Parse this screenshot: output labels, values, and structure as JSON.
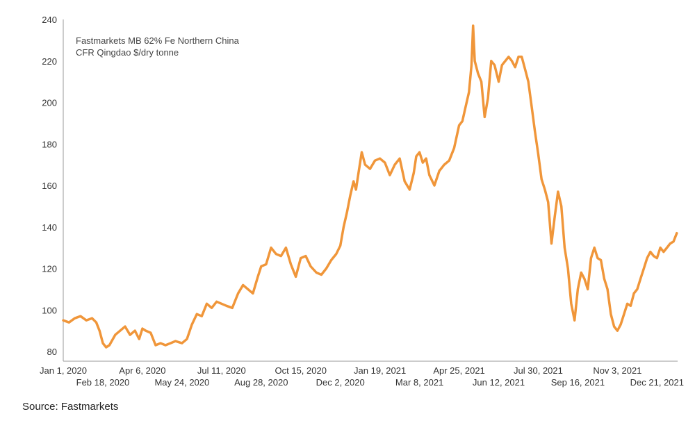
{
  "chart_data": {
    "type": "line",
    "title": "",
    "annotation": [
      "Fastmarkets MB 62% Fe Northern China",
      "CFR Qingdao $/dry tonne"
    ],
    "xlabel": "",
    "ylabel": "",
    "ylim": [
      75,
      240
    ],
    "yticks": [
      80,
      100,
      120,
      140,
      160,
      180,
      200,
      220,
      240
    ],
    "xlim": [
      "2020-01-01",
      "2022-01-15"
    ],
    "xticks_top": [
      "Jan 1, 2020",
      "Apr 6, 2020",
      "Jul 11, 2020",
      "Oct 15, 2020",
      "Jan 19, 2021",
      "Apr 25, 2021",
      "Jul 30, 2021",
      "Nov 3, 2021"
    ],
    "xticks_bottom": [
      "Feb 18, 2020",
      "May 24, 2020",
      "Aug 28, 2020",
      "Dec 2, 2020",
      "Mar 8, 2021",
      "Jun 12, 2021",
      "Sep 16, 2021",
      "Dec 21, 2021"
    ],
    "grid": false,
    "line_color": "#f0963a",
    "series": [
      {
        "name": "",
        "x": [
          "2020-01-01",
          "2020-01-08",
          "2020-01-15",
          "2020-01-22",
          "2020-01-29",
          "2020-02-05",
          "2020-02-10",
          "2020-02-14",
          "2020-02-18",
          "2020-02-22",
          "2020-02-26",
          "2020-03-04",
          "2020-03-10",
          "2020-03-16",
          "2020-03-22",
          "2020-03-28",
          "2020-04-02",
          "2020-04-06",
          "2020-04-10",
          "2020-04-16",
          "2020-04-22",
          "2020-04-28",
          "2020-05-04",
          "2020-05-10",
          "2020-05-16",
          "2020-05-24",
          "2020-05-30",
          "2020-06-05",
          "2020-06-11",
          "2020-06-17",
          "2020-06-23",
          "2020-06-29",
          "2020-07-05",
          "2020-07-11",
          "2020-07-17",
          "2020-07-24",
          "2020-07-31",
          "2020-08-06",
          "2020-08-12",
          "2020-08-18",
          "2020-08-24",
          "2020-08-28",
          "2020-09-03",
          "2020-09-09",
          "2020-09-15",
          "2020-09-21",
          "2020-09-27",
          "2020-10-03",
          "2020-10-09",
          "2020-10-15",
          "2020-10-21",
          "2020-10-27",
          "2020-11-03",
          "2020-11-09",
          "2020-11-15",
          "2020-11-21",
          "2020-11-27",
          "2020-12-02",
          "2020-12-06",
          "2020-12-10",
          "2020-12-14",
          "2020-12-18",
          "2020-12-21",
          "2020-12-24",
          "2020-12-28",
          "2021-01-01",
          "2021-01-07",
          "2021-01-13",
          "2021-01-19",
          "2021-01-25",
          "2021-01-31",
          "2021-02-06",
          "2021-02-12",
          "2021-02-18",
          "2021-02-24",
          "2021-03-01",
          "2021-03-04",
          "2021-03-08",
          "2021-03-12",
          "2021-03-16",
          "2021-03-20",
          "2021-03-26",
          "2021-04-01",
          "2021-04-07",
          "2021-04-13",
          "2021-04-19",
          "2021-04-25",
          "2021-04-29",
          "2021-05-03",
          "2021-05-07",
          "2021-05-10",
          "2021-05-12",
          "2021-05-14",
          "2021-05-18",
          "2021-05-22",
          "2021-05-26",
          "2021-05-30",
          "2021-06-03",
          "2021-06-07",
          "2021-06-12",
          "2021-06-16",
          "2021-06-20",
          "2021-06-24",
          "2021-06-28",
          "2021-07-02",
          "2021-07-06",
          "2021-07-10",
          "2021-07-14",
          "2021-07-18",
          "2021-07-22",
          "2021-07-26",
          "2021-07-30",
          "2021-08-03",
          "2021-08-07",
          "2021-08-11",
          "2021-08-15",
          "2021-08-19",
          "2021-08-23",
          "2021-08-27",
          "2021-08-31",
          "2021-09-04",
          "2021-09-08",
          "2021-09-12",
          "2021-09-16",
          "2021-09-20",
          "2021-09-24",
          "2021-09-28",
          "2021-10-02",
          "2021-10-06",
          "2021-10-10",
          "2021-10-14",
          "2021-10-18",
          "2021-10-22",
          "2021-10-26",
          "2021-10-30",
          "2021-11-03",
          "2021-11-07",
          "2021-11-11",
          "2021-11-15",
          "2021-11-19",
          "2021-11-23",
          "2021-11-27",
          "2021-12-01",
          "2021-12-05",
          "2021-12-09",
          "2021-12-13",
          "2021-12-17",
          "2021-12-21",
          "2021-12-25",
          "2021-12-29",
          "2022-01-02",
          "2022-01-06",
          "2022-01-10",
          "2022-01-14"
        ],
        "values": [
          95,
          94,
          96,
          97,
          95,
          96,
          94,
          90,
          84,
          82,
          83,
          88,
          90,
          92,
          88,
          90,
          86,
          91,
          90,
          89,
          83,
          84,
          83,
          84,
          85,
          84,
          86,
          93,
          98,
          97,
          103,
          101,
          104,
          103,
          102,
          101,
          108,
          112,
          110,
          108,
          116,
          121,
          122,
          130,
          127,
          126,
          130,
          122,
          116,
          125,
          126,
          121,
          118,
          117,
          120,
          124,
          127,
          131,
          140,
          147,
          155,
          162,
          158,
          166,
          176,
          170,
          168,
          172,
          173,
          171,
          165,
          170,
          173,
          162,
          158,
          166,
          174,
          176,
          171,
          173,
          165,
          160,
          167,
          170,
          172,
          178,
          189,
          191,
          198,
          205,
          218,
          237,
          220,
          214,
          210,
          193,
          202,
          220,
          218,
          210,
          218,
          220,
          222,
          220,
          217,
          222,
          222,
          216,
          210,
          198,
          186,
          175,
          163,
          158,
          152,
          132,
          145,
          157,
          150,
          130,
          120,
          103,
          95,
          110,
          118,
          115,
          110,
          125,
          130,
          125,
          124,
          115,
          110,
          98,
          92,
          90,
          93,
          98,
          103,
          102,
          108,
          110,
          115,
          120,
          125,
          128,
          126,
          125,
          130,
          128,
          130,
          132,
          133,
          137
        ]
      }
    ]
  },
  "source": "Source: Fastmarkets"
}
